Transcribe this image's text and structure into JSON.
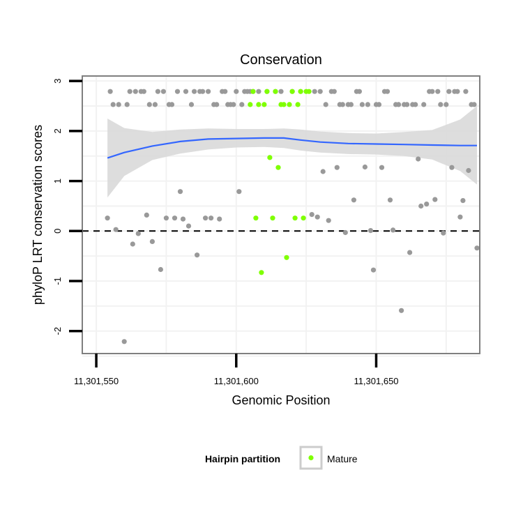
{
  "chart_data": {
    "type": "scatter",
    "title": "Conservation",
    "xlabel": "Genomic Position",
    "ylabel": "phyloP LRT conservation scores",
    "xlim": [
      11301545,
      11301687
    ],
    "ylim": [
      -2.45,
      3.1
    ],
    "x_ticks": [
      11301550,
      11301600,
      11301650
    ],
    "x_tick_labels": [
      "11,301,550",
      "11,301,600",
      "11,301,650"
    ],
    "y_ticks": [
      -2,
      -1,
      0,
      1,
      2,
      3
    ],
    "y_tick_labels": [
      "-2",
      "-1",
      "0",
      "1",
      "2",
      "3"
    ],
    "grid": true,
    "reference_line": {
      "y": 0,
      "style": "dashed"
    },
    "legend": {
      "title": "Hairpin partition",
      "position": "bottom",
      "entries": [
        {
          "label": "Mature",
          "color": "#7fff00"
        }
      ]
    },
    "colors": {
      "other": "#999999",
      "mature": "#7fff00",
      "smooth": "#3366ff",
      "ribbon": "#d9d9d9",
      "panel_border": "#7f7f7f",
      "grid": "#f2f2f2"
    },
    "series": [
      {
        "key": "other",
        "x": [
          11301554,
          11301555,
          11301556,
          11301557,
          11301558,
          11301560,
          11301561,
          11301562,
          11301563,
          11301564,
          11301565,
          11301566,
          11301567,
          11301568,
          11301569,
          11301570,
          11301571,
          11301572,
          11301573,
          11301574,
          11301575,
          11301576,
          11301577,
          11301578,
          11301579,
          11301580,
          11301581,
          11301582,
          11301583,
          11301584,
          11301585,
          11301586,
          11301587,
          11301588,
          11301589,
          11301590,
          11301591,
          11301592,
          11301593,
          11301594,
          11301595,
          11301596,
          11301597,
          11301598,
          11301599,
          11301600,
          11301601,
          11301602,
          11301603,
          11301604,
          11301605,
          11301606,
          11301608,
          11301611,
          11301614,
          11301616,
          11301620,
          11301623,
          11301627,
          11301628,
          11301629,
          11301630,
          11301631,
          11301632,
          11301633,
          11301634,
          11301635,
          11301636,
          11301637,
          11301638,
          11301639,
          11301640,
          11301641,
          11301642,
          11301643,
          11301644,
          11301645,
          11301646,
          11301647,
          11301648,
          11301649,
          11301650,
          11301651,
          11301652,
          11301653,
          11301654,
          11301655,
          11301656,
          11301657,
          11301658,
          11301659,
          11301660,
          11301661,
          11301662,
          11301663,
          11301664,
          11301665,
          11301666,
          11301667,
          11301668,
          11301669,
          11301670,
          11301671,
          11301672,
          11301673,
          11301674,
          11301675,
          11301676,
          11301677,
          11301678,
          11301679,
          11301680,
          11301681,
          11301682,
          11301683,
          11301684,
          11301685,
          11301686
        ],
        "y": [
          0.26,
          2.79,
          2.53,
          0.03,
          2.53,
          -2.21,
          2.53,
          2.79,
          -0.26,
          2.79,
          -0.05,
          2.79,
          2.79,
          0.32,
          2.53,
          -0.21,
          2.53,
          2.79,
          -0.77,
          2.79,
          0.26,
          2.53,
          2.53,
          0.26,
          2.79,
          0.79,
          0.24,
          2.79,
          0.1,
          2.53,
          2.79,
          -0.48,
          2.79,
          2.79,
          0.26,
          2.79,
          0.26,
          2.53,
          2.53,
          0.24,
          2.79,
          2.79,
          2.53,
          2.53,
          2.53,
          2.79,
          0.79,
          2.53,
          2.79,
          2.79,
          2.79,
          2.79,
          2.79,
          2.79,
          2.79,
          2.79,
          2.79,
          2.79,
          0.33,
          2.79,
          0.28,
          2.79,
          1.19,
          2.53,
          0.21,
          2.79,
          2.79,
          1.27,
          2.53,
          2.53,
          -0.03,
          2.53,
          2.53,
          0.62,
          2.79,
          2.79,
          2.53,
          1.28,
          2.53,
          0.01,
          -0.78,
          2.53,
          2.53,
          1.27,
          2.79,
          2.79,
          0.62,
          0.02,
          2.53,
          2.53,
          -1.59,
          2.53,
          2.53,
          -0.43,
          2.53,
          2.53,
          1.44,
          0.5,
          2.53,
          0.54,
          2.79,
          2.79,
          0.63,
          2.79,
          2.53,
          -0.04,
          2.53,
          2.79,
          1.27,
          2.79,
          2.79,
          0.28,
          0.61,
          2.79,
          1.21,
          2.53,
          2.53,
          -0.34
        ]
      },
      {
        "key": "mature",
        "name": "Mature",
        "x": [
          11301605,
          11301606,
          11301607,
          11301608,
          11301609,
          11301610,
          11301611,
          11301612,
          11301613,
          11301614,
          11301615,
          11301616,
          11301617,
          11301618,
          11301619,
          11301620,
          11301621,
          11301622,
          11301623,
          11301624,
          11301625,
          11301626
        ],
        "y": [
          2.53,
          2.79,
          0.26,
          2.53,
          -0.83,
          2.53,
          2.79,
          1.47,
          0.26,
          2.79,
          1.27,
          2.53,
          2.53,
          -0.53,
          2.53,
          2.79,
          0.26,
          2.53,
          2.79,
          0.26,
          2.79,
          2.79
        ]
      }
    ],
    "smooth": {
      "x": [
        11301554,
        11301560,
        11301570,
        11301580,
        11301590,
        11301600,
        11301610,
        11301617,
        11301623,
        11301630,
        11301640,
        11301650,
        11301660,
        11301670,
        11301680,
        11301686
      ],
      "y": [
        1.46,
        1.57,
        1.7,
        1.79,
        1.84,
        1.85,
        1.86,
        1.86,
        1.82,
        1.78,
        1.75,
        1.74,
        1.73,
        1.72,
        1.71,
        1.71
      ],
      "ci_lower": [
        0.67,
        1.1,
        1.42,
        1.55,
        1.63,
        1.67,
        1.68,
        1.66,
        1.61,
        1.57,
        1.54,
        1.53,
        1.5,
        1.43,
        1.2,
        0.93
      ],
      "ci_upper": [
        2.25,
        2.06,
        1.98,
        2.03,
        2.05,
        2.04,
        2.04,
        2.05,
        2.03,
        1.99,
        1.96,
        1.95,
        1.98,
        2.02,
        2.23,
        2.5
      ]
    }
  }
}
